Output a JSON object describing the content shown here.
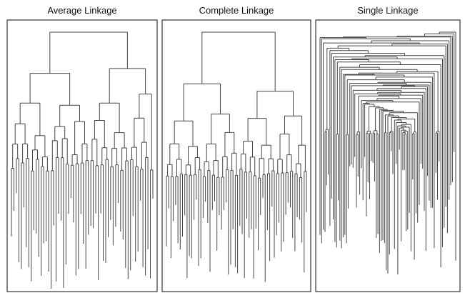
{
  "panels": [
    {
      "title": "Average Linkage"
    },
    {
      "title": "Complete Linkage"
    },
    {
      "title": "Single Linkage"
    }
  ]
}
